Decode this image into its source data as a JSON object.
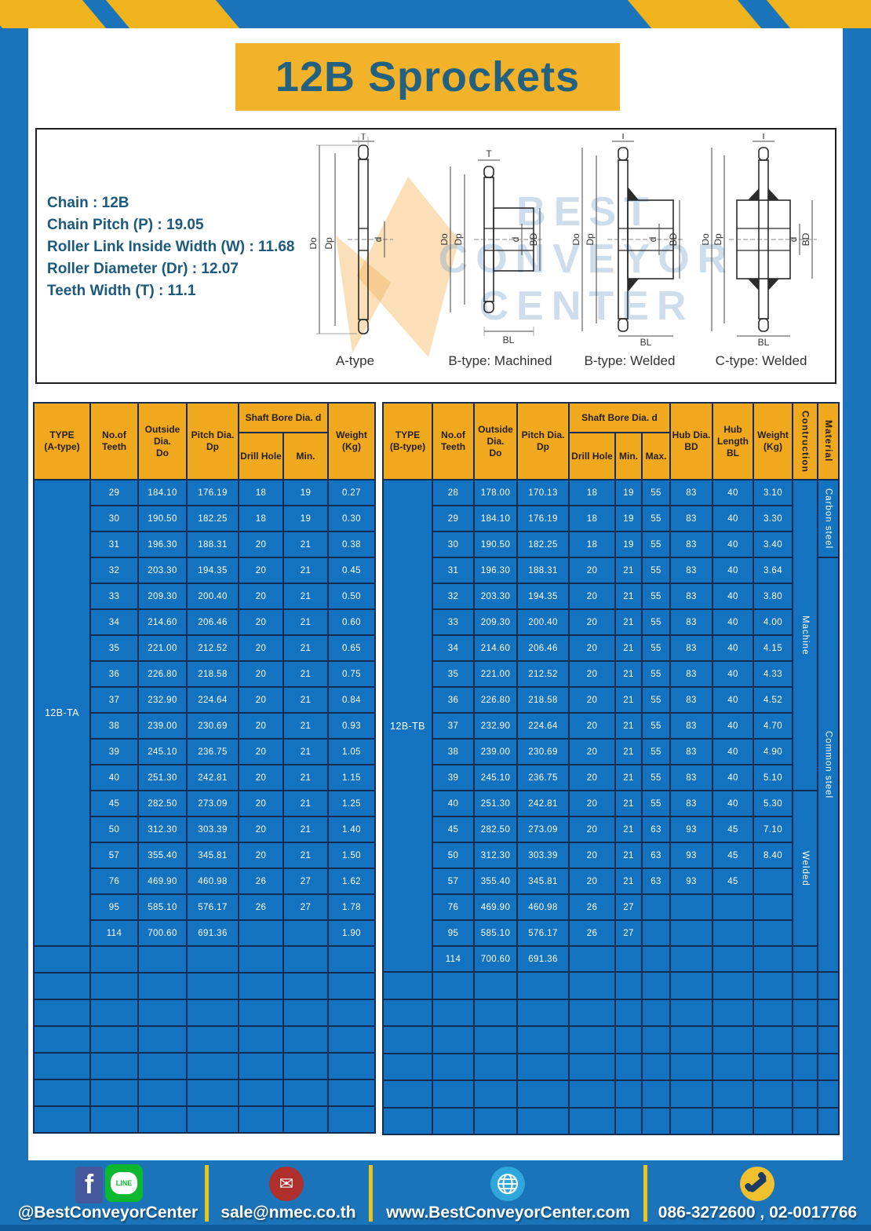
{
  "title": {
    "text": "12B Sprockets"
  },
  "specs": {
    "lines": [
      "Chain  :  12B",
      "Chain Pitch (P)  :  19.05",
      "Roller Link Inside Width (W) : 11.68",
      "Roller Diameter (Dr)  : 12.07",
      "Teeth Width (T)  :  11.1"
    ]
  },
  "diagram": {
    "watermark": {
      "line1": "BEST",
      "line2": "CONVEYOR",
      "line3": "CENTER"
    },
    "dims": {
      "t": "T",
      "do": "Do",
      "dp": "Dp",
      "d": "d",
      "bd": "BD",
      "bl": "BL"
    },
    "captions": [
      "A-type",
      "B-type: Machined",
      "B-type: Welded",
      "C-type: Welded"
    ]
  },
  "table_a": {
    "type_label": "12B-TA",
    "header": {
      "type": "TYPE\n(A-type)",
      "teeth": "No.of\nTeeth",
      "outside": "Outside\nDia.\nDo",
      "pitch": "Pitch Dia.\nDp",
      "shaft_bore": "Shaft Bore Dia. d",
      "drill": "Drill Hole",
      "min": "Min.",
      "weight": "Weight\n(Kg)"
    },
    "rows": [
      [
        "29",
        "184.10",
        "176.19",
        "18",
        "19",
        "0.27"
      ],
      [
        "30",
        "190.50",
        "182.25",
        "18",
        "19",
        "0.30"
      ],
      [
        "31",
        "196.30",
        "188.31",
        "20",
        "21",
        "0.38"
      ],
      [
        "32",
        "203.30",
        "194.35",
        "20",
        "21",
        "0.45"
      ],
      [
        "33",
        "209.30",
        "200.40",
        "20",
        "21",
        "0.50"
      ],
      [
        "34",
        "214.60",
        "206.46",
        "20",
        "21",
        "0.60"
      ],
      [
        "35",
        "221.00",
        "212.52",
        "20",
        "21",
        "0.65"
      ],
      [
        "36",
        "226.80",
        "218.58",
        "20",
        "21",
        "0.75"
      ],
      [
        "37",
        "232.90",
        "224.64",
        "20",
        "21",
        "0.84"
      ],
      [
        "38",
        "239.00",
        "230.69",
        "20",
        "21",
        "0.93"
      ],
      [
        "39",
        "245.10",
        "236.75",
        "20",
        "21",
        "1.05"
      ],
      [
        "40",
        "251.30",
        "242.81",
        "20",
        "21",
        "1.15"
      ],
      [
        "45",
        "282.50",
        "273.09",
        "20",
        "21",
        "1.25"
      ],
      [
        "50",
        "312.30",
        "303.39",
        "20",
        "21",
        "1.40"
      ],
      [
        "57",
        "355.40",
        "345.81",
        "20",
        "21",
        "1.50"
      ],
      [
        "76",
        "469.90",
        "460.98",
        "26",
        "27",
        "1.62"
      ],
      [
        "95",
        "585.10",
        "576.17",
        "26",
        "27",
        "1.78"
      ],
      [
        "114",
        "700.60",
        "691.36",
        "",
        "",
        "1.90"
      ]
    ],
    "empty_row_count": 7
  },
  "table_b": {
    "type_label": "12B-TB",
    "header": {
      "type": "TYPE\n(B-type)",
      "teeth": "No.of\nTeeth",
      "outside": "Outside\nDia.\nDo",
      "pitch": "Pitch Dia.\nDp",
      "shaft_bore": "Shaft Bore Dia. d",
      "drill": "Drill Hole",
      "min": "Min.",
      "max": "Max.",
      "hub_dia": "Hub Dia.\nBD",
      "hub_len": "Hub\nLength\nBL",
      "weight": "Weight\n(Kg)",
      "construction": "Contruction",
      "material": "Material"
    },
    "rows": [
      [
        "28",
        "178.00",
        "170.13",
        "18",
        "19",
        "55",
        "83",
        "40",
        "3.10"
      ],
      [
        "29",
        "184.10",
        "176.19",
        "18",
        "19",
        "55",
        "83",
        "40",
        "3.30"
      ],
      [
        "30",
        "190.50",
        "182.25",
        "18",
        "19",
        "55",
        "83",
        "40",
        "3.40"
      ],
      [
        "31",
        "196.30",
        "188.31",
        "20",
        "21",
        "55",
        "83",
        "40",
        "3.64"
      ],
      [
        "32",
        "203.30",
        "194.35",
        "20",
        "21",
        "55",
        "83",
        "40",
        "3.80"
      ],
      [
        "33",
        "209.30",
        "200.40",
        "20",
        "21",
        "55",
        "83",
        "40",
        "4.00"
      ],
      [
        "34",
        "214.60",
        "206.46",
        "20",
        "21",
        "55",
        "83",
        "40",
        "4.15"
      ],
      [
        "35",
        "221.00",
        "212.52",
        "20",
        "21",
        "55",
        "83",
        "40",
        "4.33"
      ],
      [
        "36",
        "226.80",
        "218.58",
        "20",
        "21",
        "55",
        "83",
        "40",
        "4.52"
      ],
      [
        "37",
        "232.90",
        "224.64",
        "20",
        "21",
        "55",
        "83",
        "40",
        "4.70"
      ],
      [
        "38",
        "239.00",
        "230.69",
        "20",
        "21",
        "55",
        "83",
        "40",
        "4.90"
      ],
      [
        "39",
        "245.10",
        "236.75",
        "20",
        "21",
        "55",
        "83",
        "40",
        "5.10"
      ],
      [
        "40",
        "251.30",
        "242.81",
        "20",
        "21",
        "55",
        "83",
        "40",
        "5.30"
      ],
      [
        "45",
        "282.50",
        "273.09",
        "20",
        "21",
        "63",
        "93",
        "45",
        "7.10"
      ],
      [
        "50",
        "312.30",
        "303.39",
        "20",
        "21",
        "63",
        "93",
        "45",
        "8.40"
      ],
      [
        "57",
        "355.40",
        "345.81",
        "20",
        "21",
        "63",
        "93",
        "45",
        ""
      ],
      [
        "76",
        "469.90",
        "460.98",
        "26",
        "27",
        "",
        "",
        "",
        ""
      ],
      [
        "95",
        "585.10",
        "576.17",
        "26",
        "27",
        "",
        "",
        "",
        ""
      ],
      [
        "114",
        "700.60",
        "691.36",
        "",
        "",
        "",
        "",
        "",
        ""
      ]
    ],
    "construction_spans": [
      {
        "label": "Machine",
        "rows": 12
      },
      {
        "label": "Welded",
        "rows": 6
      },
      {
        "label": "",
        "rows": 1
      }
    ],
    "material_spans": [
      {
        "label": "Carbon steel",
        "rows": 3
      },
      {
        "label": "Common steel",
        "rows": 16
      }
    ],
    "empty_row_count": 6
  },
  "footer": {
    "social": "@BestConveyorCenter",
    "email": "sale@nmec.co.th",
    "website": "www.BestConveyorCenter.com",
    "phone": "086-3272600 , 02-0017766",
    "facebook_letter": "f",
    "line_label": "LINE"
  }
}
